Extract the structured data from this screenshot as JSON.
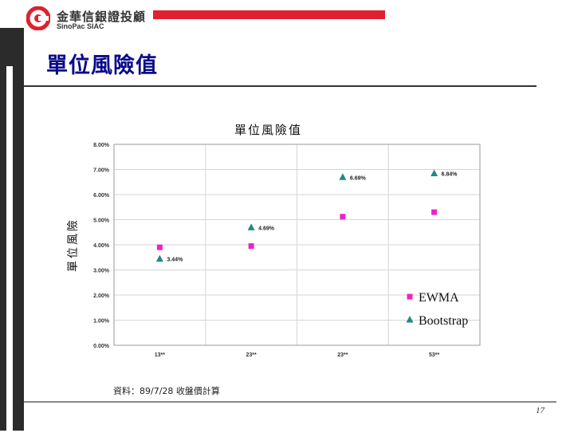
{
  "header": {
    "logo_cn": "金華信銀證投顧",
    "logo_en": "SinoPac SIAC",
    "slide_title": "單位風險值",
    "brand_red": "#e0202e",
    "title_color": "#0a0a8a"
  },
  "chart_data": {
    "type": "scatter",
    "title": "單位風險值",
    "ylabel": "單位風險",
    "xlabel": "",
    "categories": [
      "13**",
      "23**",
      "23**",
      "53**"
    ],
    "y_ticks": [
      "0.00%",
      "1.00%",
      "2.00%",
      "3.00%",
      "4.00%",
      "5.00%",
      "6.00%",
      "7.00%",
      "8.00%"
    ],
    "ylim": [
      0,
      8
    ],
    "grid": true,
    "legend_position": "bottom-right",
    "series": [
      {
        "name": "EWMA",
        "marker": "square",
        "color": "#ee22cc",
        "values": [
          3.9,
          3.95,
          5.12,
          5.3
        ],
        "labels": [
          "",
          "",
          "",
          ""
        ]
      },
      {
        "name": "Bootstrap",
        "marker": "triangle",
        "color": "#1f8a86",
        "values": [
          3.44,
          4.69,
          6.69,
          6.84
        ],
        "labels": [
          "3.44%",
          "4.69%",
          "6.69%",
          "6.84%"
        ]
      }
    ]
  },
  "footer": {
    "source_note": "資料：89/7/28 收盤價計算",
    "page_number": "17"
  }
}
